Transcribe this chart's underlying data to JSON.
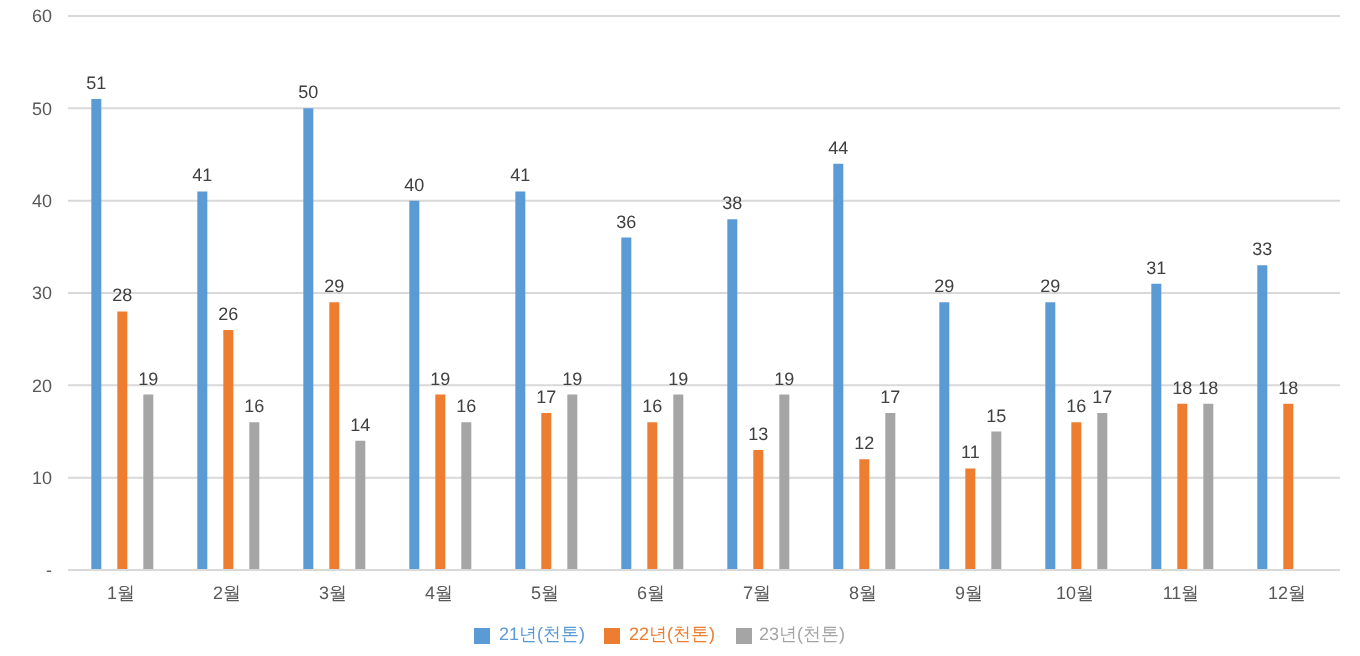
{
  "chart_data": {
    "type": "bar",
    "categories": [
      "1월",
      "2월",
      "3월",
      "4월",
      "5월",
      "6월",
      "7월",
      "8월",
      "9월",
      "10월",
      "11월",
      "12월"
    ],
    "series": [
      {
        "name": "21년(천톤)",
        "color": "#5b9bd5",
        "values": [
          51,
          41,
          50,
          40,
          41,
          36,
          38,
          44,
          29,
          29,
          31,
          33
        ]
      },
      {
        "name": "22년(천톤)",
        "color": "#ed7d31",
        "values": [
          28,
          26,
          29,
          19,
          17,
          16,
          13,
          12,
          11,
          16,
          18,
          18
        ]
      },
      {
        "name": "23년(천톤)",
        "color": "#a5a5a5",
        "values": [
          19,
          16,
          14,
          16,
          19,
          19,
          19,
          17,
          15,
          17,
          18,
          null
        ]
      }
    ],
    "ylim": [
      0,
      60
    ],
    "yticks": [
      {
        "value": 0,
        "label": "-"
      },
      10,
      20,
      30,
      40,
      50,
      60
    ],
    "grid": "y",
    "legend": "bottom",
    "data_labels": true
  }
}
